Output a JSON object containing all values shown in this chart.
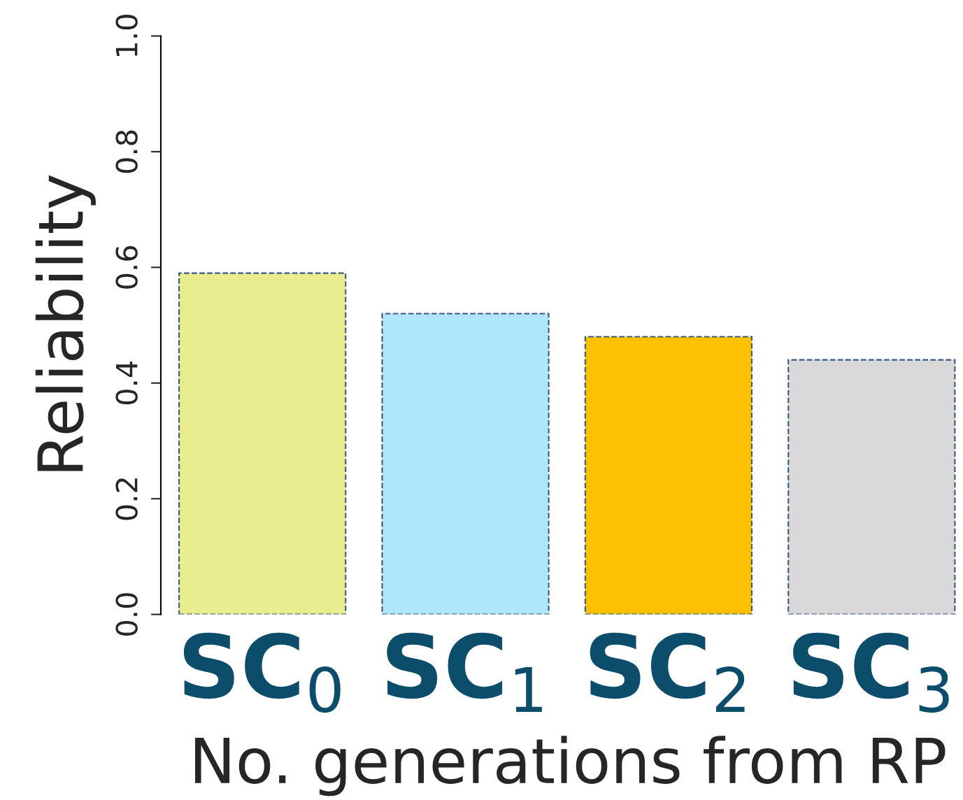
{
  "chart_data": {
    "type": "bar",
    "xlabel": "No. generations from RP",
    "ylabel": "Reliability",
    "categories": [
      "SC$_{0}$",
      "SC$_{1}$",
      "SC$_{2}$",
      "SC$_{3}$"
    ],
    "values": [
      0.59,
      0.52,
      0.48,
      0.44
    ],
    "colors": [
      "#e9ec8f",
      "#b0e6fc",
      "#fdc003",
      "#d9d9d9"
    ],
    "ylim": [
      0,
      1
    ],
    "yticks": [
      {
        "value": 0,
        "label": "0.0"
      },
      0.2,
      0.4,
      0.6,
      0.8,
      {
        "value": 1,
        "label": "1.0"
      }
    ],
    "grid": false,
    "line_style": "dashed"
  }
}
